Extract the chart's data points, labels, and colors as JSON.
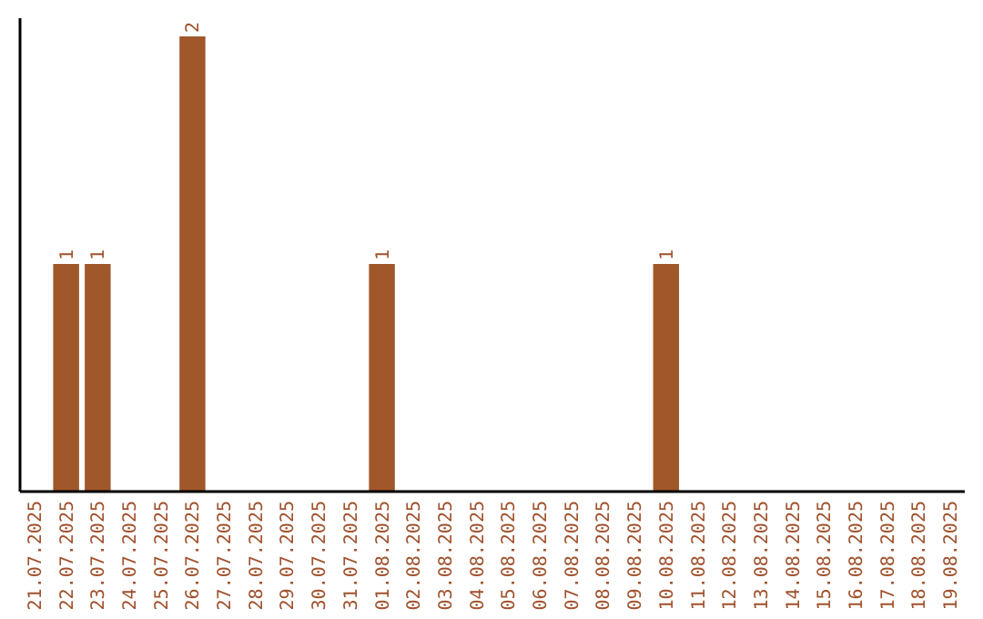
{
  "chart_data": {
    "type": "bar",
    "categories": [
      "21.07.2025",
      "22.07.2025",
      "23.07.2025",
      "24.07.2025",
      "25.07.2025",
      "26.07.2025",
      "27.07.2025",
      "28.07.2025",
      "29.07.2025",
      "30.07.2025",
      "31.07.2025",
      "01.08.2025",
      "02.08.2025",
      "03.08.2025",
      "04.08.2025",
      "05.08.2025",
      "06.08.2025",
      "07.08.2025",
      "08.08.2025",
      "09.08.2025",
      "10.08.2025",
      "11.08.2025",
      "12.08.2025",
      "13.08.2025",
      "14.08.2025",
      "15.08.2025",
      "16.08.2025",
      "17.08.2025",
      "18.08.2025",
      "19.08.2025"
    ],
    "values": [
      0,
      1,
      1,
      0,
      0,
      2,
      0,
      0,
      0,
      0,
      0,
      1,
      0,
      0,
      0,
      0,
      0,
      0,
      0,
      0,
      1,
      0,
      0,
      0,
      0,
      0,
      0,
      0,
      0,
      0
    ],
    "value_labels": [
      null,
      "1",
      "1",
      null,
      null,
      "2",
      null,
      null,
      null,
      null,
      null,
      "1",
      null,
      null,
      null,
      null,
      null,
      null,
      null,
      null,
      "1",
      null,
      null,
      null,
      null,
      null,
      null,
      null,
      null,
      null
    ],
    "color": "#a0572a"
  }
}
